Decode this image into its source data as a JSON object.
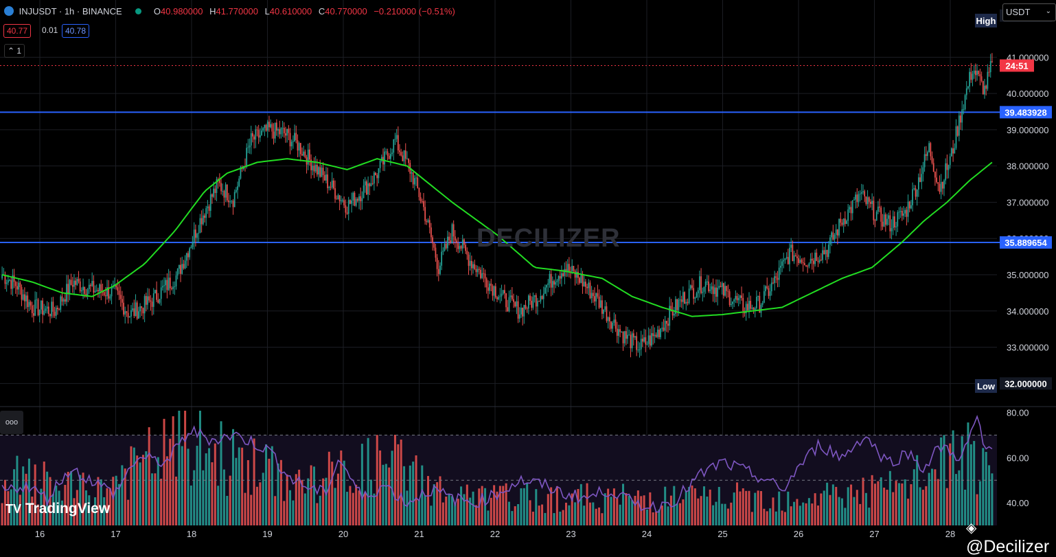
{
  "header": {
    "symbol": "INJUSDT · 1h · BINANCE",
    "o_label": "O",
    "o_value": "40.980000",
    "h_label": "H",
    "h_value": "41.770000",
    "l_label": "L",
    "l_value": "40.610000",
    "c_label": "C",
    "c_value": "40.770000",
    "change": "−0.210000 (−0.51%)",
    "bid": "40.77",
    "spread": "0.01",
    "ask": "40.78",
    "collapse_count": "1",
    "currency": "USDT",
    "watermark": "DECILIZER",
    "brand": "TradingView",
    "author": "@Decilizer",
    "ind_dots": "ooo"
  },
  "colors": {
    "up": "#26a69a",
    "down": "#ef5350",
    "ma": "#22dd22",
    "hline": "#2962ff",
    "rsi": "#7e57c2",
    "last": "#f23645"
  },
  "chart_data": [
    {
      "type": "candlestick",
      "title": "INJUSDT · 1h · BINANCE",
      "x_ticks": [
        "16",
        "17",
        "18",
        "19",
        "20",
        "21",
        "22",
        "23",
        "24",
        "25",
        "26",
        "27",
        "28"
      ],
      "y_ticks": [
        "32.000000",
        "33.000000",
        "34.000000",
        "35.000000",
        "36.000000",
        "37.000000",
        "38.000000",
        "39.000000",
        "40.000000",
        "41.000000"
      ],
      "ylim": [
        31.4,
        42.2
      ],
      "high_label": "High",
      "low_label": "Low",
      "high_value": "42.150000",
      "low_value": "32.000000",
      "countdown": "24:51",
      "last_price": 40.77,
      "horizontal_lines": [
        {
          "label": "39.483928",
          "value": 39.483928
        },
        {
          "label": "35.889654",
          "value": 35.889654
        }
      ],
      "anchors": [
        [
          0,
          35.0
        ],
        [
          10,
          34.7
        ],
        [
          20,
          34.1
        ],
        [
          35,
          34.0
        ],
        [
          47,
          34.8
        ],
        [
          60,
          34.6
        ],
        [
          75,
          34.5
        ],
        [
          85,
          33.9
        ],
        [
          100,
          34.3
        ],
        [
          117,
          35.0
        ],
        [
          133,
          36.6
        ],
        [
          144,
          37.5
        ],
        [
          154,
          37.1
        ],
        [
          166,
          38.7
        ],
        [
          178,
          39.0
        ],
        [
          188,
          38.9
        ],
        [
          197,
          38.6
        ],
        [
          210,
          37.9
        ],
        [
          220,
          37.4
        ],
        [
          230,
          36.9
        ],
        [
          240,
          37.3
        ],
        [
          250,
          37.8
        ],
        [
          262,
          38.7
        ],
        [
          272,
          37.9
        ],
        [
          280,
          37.0
        ],
        [
          291,
          35.2
        ],
        [
          300,
          36.2
        ],
        [
          312,
          35.4
        ],
        [
          322,
          34.9
        ],
        [
          335,
          34.3
        ],
        [
          345,
          34.0
        ],
        [
          357,
          34.4
        ],
        [
          367,
          34.9
        ],
        [
          375,
          35.2
        ],
        [
          385,
          34.9
        ],
        [
          397,
          34.3
        ],
        [
          407,
          33.7
        ],
        [
          415,
          33.3
        ],
        [
          425,
          33.0
        ],
        [
          435,
          33.3
        ],
        [
          445,
          33.9
        ],
        [
          455,
          34.4
        ],
        [
          468,
          34.8
        ],
        [
          482,
          34.5
        ],
        [
          495,
          34.1
        ],
        [
          505,
          34.2
        ],
        [
          515,
          34.8
        ],
        [
          525,
          35.6
        ],
        [
          537,
          35.4
        ],
        [
          550,
          35.7
        ],
        [
          560,
          36.5
        ],
        [
          572,
          37.2
        ],
        [
          582,
          36.7
        ],
        [
          592,
          36.4
        ],
        [
          602,
          36.7
        ],
        [
          610,
          37.5
        ],
        [
          618,
          38.5
        ],
        [
          625,
          37.4
        ],
        [
          633,
          38.3
        ],
        [
          640,
          39.6
        ],
        [
          647,
          40.7
        ],
        [
          655,
          40.1
        ],
        [
          660,
          40.8
        ]
      ],
      "ma_anchors": [
        [
          0,
          35.0
        ],
        [
          20,
          34.8
        ],
        [
          40,
          34.5
        ],
        [
          60,
          34.4
        ],
        [
          75,
          34.7
        ],
        [
          95,
          35.3
        ],
        [
          115,
          36.2
        ],
        [
          135,
          37.3
        ],
        [
          150,
          37.8
        ],
        [
          170,
          38.1
        ],
        [
          190,
          38.2
        ],
        [
          210,
          38.1
        ],
        [
          230,
          37.9
        ],
        [
          250,
          38.2
        ],
        [
          270,
          38.0
        ],
        [
          300,
          37.0
        ],
        [
          330,
          36.1
        ],
        [
          355,
          35.2
        ],
        [
          375,
          35.1
        ],
        [
          400,
          34.9
        ],
        [
          420,
          34.4
        ],
        [
          440,
          34.1
        ],
        [
          460,
          33.85
        ],
        [
          480,
          33.9
        ],
        [
          500,
          34.0
        ],
        [
          520,
          34.1
        ],
        [
          540,
          34.5
        ],
        [
          560,
          34.9
        ],
        [
          580,
          35.2
        ],
        [
          600,
          35.9
        ],
        [
          615,
          36.5
        ],
        [
          630,
          37.0
        ],
        [
          645,
          37.6
        ],
        [
          660,
          38.1
        ]
      ]
    },
    {
      "type": "volume",
      "anchors": [
        [
          0,
          0.3
        ],
        [
          10,
          0.5
        ],
        [
          60,
          0.35
        ],
        [
          120,
          0.9
        ],
        [
          200,
          0.45
        ],
        [
          260,
          0.7
        ],
        [
          300,
          0.3
        ],
        [
          520,
          0.3
        ],
        [
          600,
          0.4
        ],
        [
          640,
          0.8
        ],
        [
          660,
          0.45
        ]
      ]
    },
    {
      "type": "line",
      "series": [
        {
          "name": "",
          "anchors": [
            [
              0,
              45
            ],
            [
              15,
              48
            ],
            [
              30,
              42
            ],
            [
              45,
              55
            ],
            [
              60,
              50
            ],
            [
              75,
              44
            ],
            [
              90,
              60
            ],
            [
              110,
              58
            ],
            [
              125,
              72
            ],
            [
              140,
              68
            ],
            [
              155,
              70
            ],
            [
              170,
              66
            ],
            [
              180,
              62
            ],
            [
              190,
              52
            ],
            [
              200,
              48
            ],
            [
              215,
              44
            ],
            [
              225,
              60
            ],
            [
              240,
              42
            ],
            [
              255,
              48
            ],
            [
              270,
              40
            ],
            [
              285,
              46
            ],
            [
              300,
              42
            ],
            [
              315,
              40
            ],
            [
              330,
              44
            ],
            [
              345,
              50
            ],
            [
              360,
              48
            ],
            [
              375,
              44
            ],
            [
              390,
              42
            ],
            [
              405,
              46
            ],
            [
              420,
              40
            ],
            [
              435,
              38
            ],
            [
              450,
              42
            ],
            [
              465,
              52
            ],
            [
              480,
              58
            ],
            [
              495,
              54
            ],
            [
              510,
              50
            ],
            [
              520,
              45
            ],
            [
              530,
              55
            ],
            [
              545,
              66
            ],
            [
              560,
              60
            ],
            [
              575,
              70
            ],
            [
              590,
              58
            ],
            [
              605,
              62
            ],
            [
              615,
              55
            ],
            [
              625,
              65
            ],
            [
              640,
              60
            ],
            [
              650,
              78
            ],
            [
              655,
              62
            ],
            [
              660,
              64
            ]
          ]
        }
      ],
      "y_ticks": [
        "80.00",
        "60.00",
        "40.00"
      ],
      "ylim": [
        30,
        82
      ],
      "bands": [
        70,
        50
      ]
    }
  ]
}
